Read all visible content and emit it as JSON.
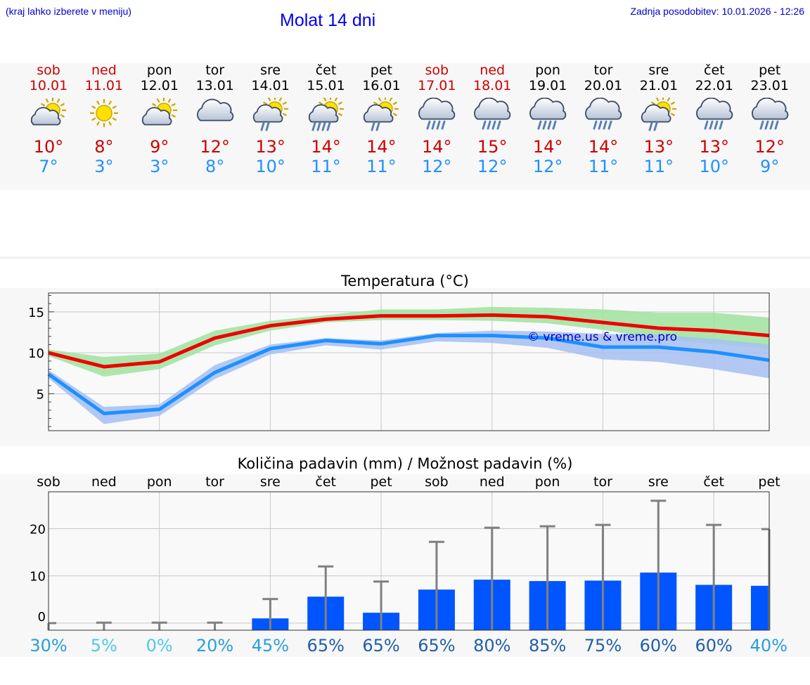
{
  "header": {
    "hint": "(kraj lahko izberete v meniju)",
    "title": "Molat 14 dni",
    "updated": "Zadnja posodobitev: 10.01.2026 - 12:26"
  },
  "days": [
    {
      "name": "sob",
      "date": "10.01",
      "weekend": true,
      "icon": "partly-cloudy-icon",
      "max": "10°",
      "min": "7°"
    },
    {
      "name": "ned",
      "date": "11.01",
      "weekend": true,
      "icon": "sun-icon",
      "max": "8°",
      "min": "3°"
    },
    {
      "name": "pon",
      "date": "12.01",
      "weekend": false,
      "icon": "partly-cloudy-icon",
      "max": "9°",
      "min": "3°"
    },
    {
      "name": "tor",
      "date": "13.01",
      "weekend": false,
      "icon": "cloudy-icon",
      "max": "12°",
      "min": "8°"
    },
    {
      "name": "sre",
      "date": "14.01",
      "weekend": false,
      "icon": "sun-cloud-light-rain-icon",
      "max": "13°",
      "min": "10°"
    },
    {
      "name": "čet",
      "date": "15.01",
      "weekend": false,
      "icon": "sun-cloud-rain-icon",
      "max": "14°",
      "min": "11°"
    },
    {
      "name": "pet",
      "date": "16.01",
      "weekend": false,
      "icon": "sun-cloud-light-rain-icon",
      "max": "14°",
      "min": "11°"
    },
    {
      "name": "sob",
      "date": "17.01",
      "weekend": true,
      "icon": "rain-icon",
      "max": "14°",
      "min": "12°"
    },
    {
      "name": "ned",
      "date": "18.01",
      "weekend": true,
      "icon": "rain-icon",
      "max": "15°",
      "min": "12°"
    },
    {
      "name": "pon",
      "date": "19.01",
      "weekend": false,
      "icon": "rain-icon",
      "max": "14°",
      "min": "12°"
    },
    {
      "name": "tor",
      "date": "20.01",
      "weekend": false,
      "icon": "rain-icon",
      "max": "14°",
      "min": "11°"
    },
    {
      "name": "sre",
      "date": "21.01",
      "weekend": false,
      "icon": "sun-cloud-light-rain-icon",
      "max": "13°",
      "min": "11°"
    },
    {
      "name": "čet",
      "date": "22.01",
      "weekend": false,
      "icon": "rain-icon",
      "max": "13°",
      "min": "10°"
    },
    {
      "name": "pet",
      "date": "23.01",
      "weekend": false,
      "icon": "rain-icon",
      "max": "12°",
      "min": "9°"
    }
  ],
  "colors": {
    "max": "#ee0000",
    "min": "#1e90ff",
    "maxBand": "#9fe39f",
    "minBand": "#a6bff2",
    "bar": "#0055ff",
    "whisker": "#808080",
    "watermark": "#0000cc"
  },
  "chart_data": [
    {
      "type": "line",
      "title": "Temperatura (°C)",
      "x": [
        0,
        1,
        2,
        3,
        4,
        5,
        6,
        7,
        8,
        9,
        10,
        11,
        12,
        13
      ],
      "ylim": [
        0.5,
        17.3
      ],
      "yticks": [
        5,
        10,
        15
      ],
      "watermark": "© vreme.us & vreme.pro",
      "series": [
        {
          "name": "max",
          "values": [
            10,
            8.3,
            8.9,
            11.8,
            13.3,
            14.1,
            14.5,
            14.5,
            14.6,
            14.4,
            13.7,
            13.0,
            12.7,
            12.1
          ],
          "band_low": [
            9.6,
            7.1,
            8.0,
            10.9,
            12.7,
            13.7,
            14.0,
            14.0,
            13.9,
            13.6,
            12.8,
            11.7,
            11.1,
            10.5
          ],
          "band_high": [
            10.4,
            9.5,
            9.9,
            12.7,
            13.9,
            14.6,
            15.3,
            15.3,
            15.6,
            15.5,
            15.3,
            14.9,
            14.9,
            14.3
          ]
        },
        {
          "name": "min",
          "values": [
            7.4,
            2.6,
            3.1,
            7.6,
            10.5,
            11.5,
            11.1,
            12.1,
            12.1,
            11.8,
            10.7,
            10.7,
            10.1,
            9.1
          ],
          "band_low": [
            6.9,
            1.3,
            2.3,
            6.8,
            9.8,
            10.9,
            10.4,
            11.4,
            11.2,
            10.6,
            9.2,
            8.9,
            8.0,
            6.9
          ],
          "band_high": [
            7.9,
            3.4,
            3.7,
            8.5,
            11.0,
            11.8,
            11.5,
            12.4,
            12.7,
            12.6,
            12.3,
            12.2,
            11.7,
            11.0
          ]
        }
      ]
    },
    {
      "type": "bar",
      "title": "Količina padavin (mm) / Možnost padavin (%)",
      "categories": [
        "sob",
        "ned",
        "pon",
        "tor",
        "sre",
        "čet",
        "pet",
        "sob",
        "ned",
        "pon",
        "tor",
        "sre",
        "čet",
        "pet"
      ],
      "values": [
        0,
        0,
        0,
        0,
        1,
        5.6,
        2.2,
        7.1,
        9.2,
        8.9,
        9.0,
        10.7,
        8.1,
        7.9
      ],
      "error_max": [
        0,
        0.1,
        0.1,
        0.1,
        5.1,
        12.0,
        8.8,
        17.2,
        20.2,
        20.5,
        20.8,
        25.9,
        20.8,
        19.9
      ],
      "probability": [
        "30%",
        "5%",
        "0%",
        "20%",
        "45%",
        "65%",
        "65%",
        "65%",
        "80%",
        "85%",
        "75%",
        "60%",
        "60%",
        "40%"
      ],
      "probability_colors": [
        "#2a9fd6",
        "#4fc9e8",
        "#4fc9e8",
        "#2a9fd6",
        "#2a9fd6",
        "#1f5fa8",
        "#1f5fa8",
        "#1f5fa8",
        "#1f5fa8",
        "#1f5fa8",
        "#1f5fa8",
        "#1f5fa8",
        "#1f5fa8",
        "#2a9fd6"
      ],
      "ylim": [
        -1.5,
        27.8
      ],
      "yticks": [
        0,
        10,
        20
      ]
    }
  ]
}
